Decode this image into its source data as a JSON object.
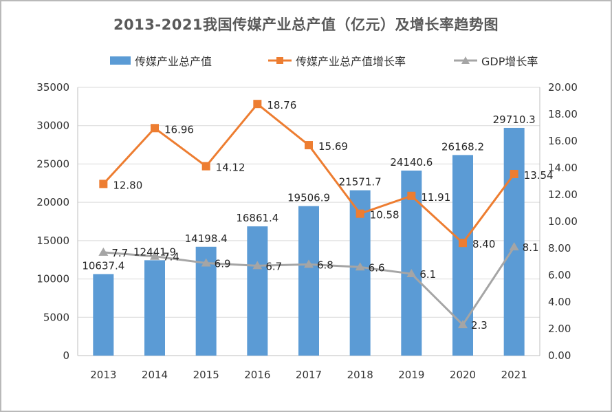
{
  "chart_data": {
    "type": "bar",
    "title": "2013-2021我国传媒产业总产值（亿元）及增长率趋势图",
    "categories": [
      "2013",
      "2014",
      "2015",
      "2016",
      "2017",
      "2018",
      "2019",
      "2020",
      "2021"
    ],
    "series": [
      {
        "name": "传媒产业总产值",
        "type": "bar",
        "axis": "left",
        "color": "#5b9bd5",
        "values": [
          10637.4,
          12441.9,
          14198.4,
          16861.4,
          19506.9,
          21571.7,
          24140.6,
          26168.2,
          29710.3
        ],
        "labels": [
          "10637.4",
          "12441.9",
          "14198.4",
          "16861.4",
          "19506.9",
          "21571.7",
          "24140.6",
          "26168.2",
          "29710.3"
        ]
      },
      {
        "name": "传媒产业总产值增长率",
        "type": "line",
        "marker": "square",
        "axis": "right",
        "color": "#ed7d31",
        "values": [
          12.8,
          16.96,
          14.12,
          18.76,
          15.69,
          10.58,
          11.91,
          8.4,
          13.54
        ],
        "labels": [
          "12.80",
          "16.96",
          "14.12",
          "18.76",
          "15.69",
          "10.58",
          "11.91",
          "8.40",
          "13.54"
        ]
      },
      {
        "name": "GDP增长率",
        "type": "line",
        "marker": "triangle",
        "axis": "right",
        "color": "#a5a5a5",
        "values": [
          7.7,
          7.4,
          6.9,
          6.7,
          6.8,
          6.6,
          6.1,
          2.3,
          8.1
        ],
        "labels": [
          "7.7",
          "7.4",
          "6.9",
          "6.7",
          "6.8",
          "6.6",
          "6.1",
          "2.3",
          "8.1"
        ]
      }
    ],
    "y_left": {
      "ylim": [
        0,
        35000
      ],
      "ticks": [
        "0",
        "5000",
        "10000",
        "15000",
        "20000",
        "25000",
        "30000",
        "35000"
      ]
    },
    "y_right": {
      "ylim": [
        0,
        20
      ],
      "ticks": [
        "0.00",
        "2.00",
        "4.00",
        "6.00",
        "8.00",
        "10.00",
        "12.00",
        "14.00",
        "16.00",
        "18.00",
        "20.00"
      ]
    },
    "grid": "horizontal",
    "legend": "top"
  }
}
